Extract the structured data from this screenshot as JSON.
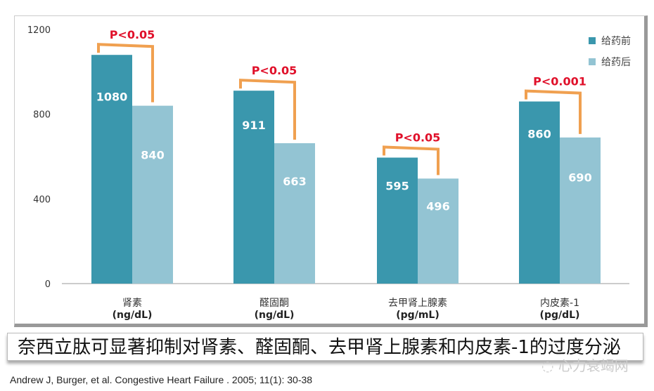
{
  "chart_data": {
    "type": "bar",
    "categories": [
      "肾素",
      "醛固酮",
      "去甲肾上腺素",
      "内皮素-1"
    ],
    "units": [
      "(ng/dL)",
      "(ng/dL)",
      "(pg/mL)",
      "(pg/dL)"
    ],
    "series": [
      {
        "name": "给药前",
        "color": "#3a97ad",
        "values": [
          1080,
          911,
          595,
          860
        ]
      },
      {
        "name": "给药后",
        "color": "#93c4d3",
        "values": [
          840,
          663,
          496,
          690
        ]
      }
    ],
    "significance": [
      "P<0.05",
      "P<0.05",
      "P<0.05",
      "P<0.001"
    ],
    "ylim": [
      0,
      1200
    ],
    "yticks": [
      0,
      400,
      800,
      1200
    ],
    "legend": "top-right",
    "grid": false
  },
  "caption": "奈西立肽可显著抑制对肾素、醛固酮、去甲肾上腺素和内皮素-1的过度分泌",
  "citation": "Andrew J, Burger, et al. Congestive Heart Failure . 2005; 11(1): 30-38",
  "watermark": "心力衰竭网"
}
